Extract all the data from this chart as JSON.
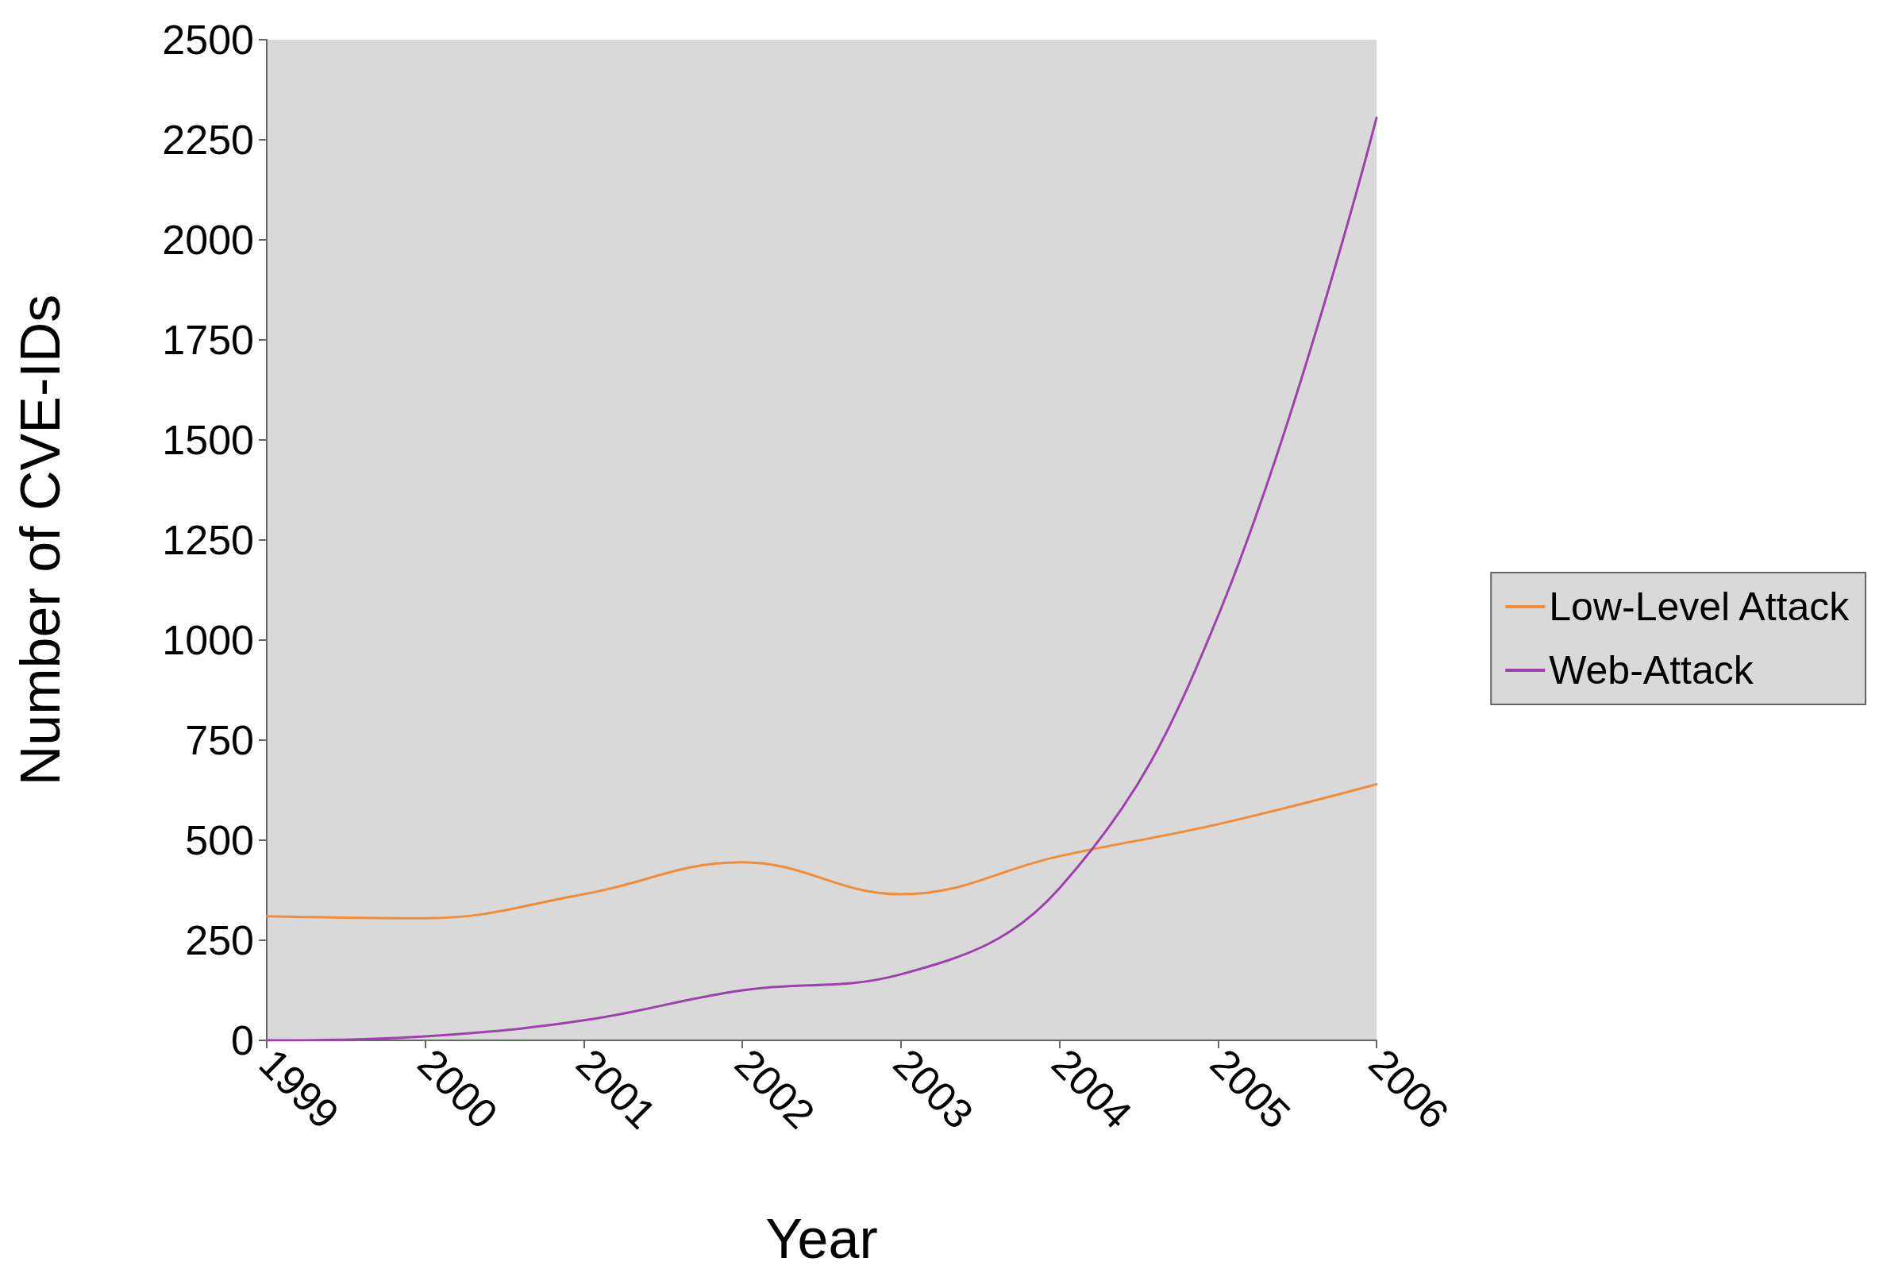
{
  "chart_data": {
    "type": "line",
    "xlabel": "Year",
    "ylabel": "Number of CVE-IDs",
    "categories": [
      "1999",
      "2000",
      "2001",
      "2002",
      "2003",
      "2004",
      "2005",
      "2006"
    ],
    "series": [
      {
        "name": "Low-Level Attack",
        "color": "#f28c38",
        "values": [
          310,
          305,
          365,
          445,
          365,
          460,
          540,
          640
        ]
      },
      {
        "name": "Web-Attack",
        "color": "#a040b0",
        "values": [
          0,
          10,
          50,
          125,
          165,
          380,
          1060,
          2305
        ]
      }
    ],
    "ylim": [
      0,
      2500
    ],
    "yticks": [
      0,
      250,
      500,
      750,
      1000,
      1250,
      1500,
      1750,
      2000,
      2250,
      2500
    ],
    "grid": false,
    "legend": "right",
    "marker": "none",
    "line_style": "solid"
  }
}
